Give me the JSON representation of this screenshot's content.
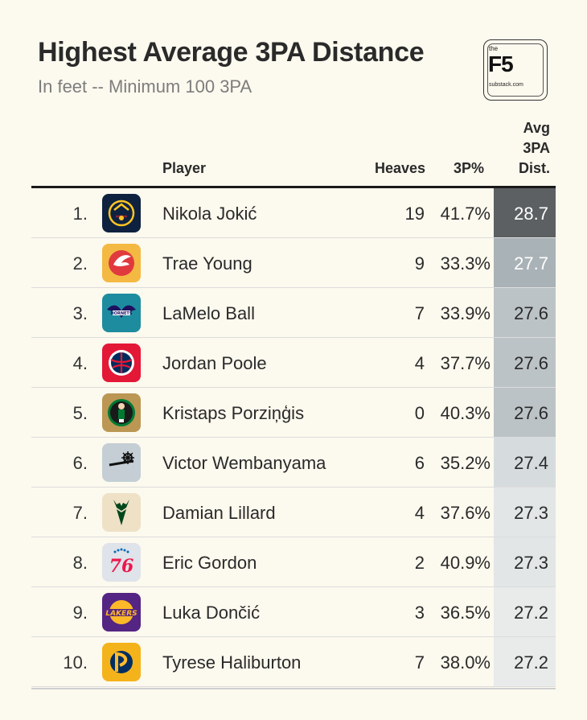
{
  "title": "Highest Average 3PA Distance",
  "subtitle": "In feet -- Minimum 100 3PA",
  "logo": {
    "the": "the",
    "brand": "F5",
    "domain": "substack.com"
  },
  "chart_data": {
    "type": "table",
    "columns": {
      "player": "Player",
      "heaves": "Heaves",
      "pct": "3P%",
      "dist": "Avg\n3PA\nDist."
    },
    "rows": [
      {
        "rank": "1.",
        "team": "Denver Nuggets",
        "player": "Nikola Jokić",
        "heaves": "19",
        "pct": "41.7%",
        "dist": "28.7",
        "dist_value": 28.7,
        "shade": "#5c6062",
        "text": "#ffffff"
      },
      {
        "rank": "2.",
        "team": "Atlanta Hawks",
        "player": "Trae Young",
        "heaves": "9",
        "pct": "33.3%",
        "dist": "27.7",
        "dist_value": 27.7,
        "shade": "#a9b2b6",
        "text": "#ffffff"
      },
      {
        "rank": "3.",
        "team": "Charlotte Hornets",
        "player": "LaMelo Ball",
        "heaves": "7",
        "pct": "33.9%",
        "dist": "27.6",
        "dist_value": 27.6,
        "shade": "#bcc3c6",
        "text": "#2a2a2a"
      },
      {
        "rank": "4.",
        "team": "Washington Wizards",
        "player": "Jordan Poole",
        "heaves": "4",
        "pct": "37.7%",
        "dist": "27.6",
        "dist_value": 27.6,
        "shade": "#bcc3c6",
        "text": "#2a2a2a"
      },
      {
        "rank": "5.",
        "team": "Boston Celtics",
        "player": "Kristaps Porziņģis",
        "heaves": "0",
        "pct": "40.3%",
        "dist": "27.6",
        "dist_value": 27.6,
        "shade": "#bcc3c6",
        "text": "#2a2a2a"
      },
      {
        "rank": "6.",
        "team": "San Antonio Spurs",
        "player": "Victor Wembanyama",
        "heaves": "6",
        "pct": "35.2%",
        "dist": "27.4",
        "dist_value": 27.4,
        "shade": "#d6dcde",
        "text": "#2a2a2a"
      },
      {
        "rank": "7.",
        "team": "Milwaukee Bucks",
        "player": "Damian Lillard",
        "heaves": "4",
        "pct": "37.6%",
        "dist": "27.3",
        "dist_value": 27.3,
        "shade": "#e2e6e7",
        "text": "#2a2a2a"
      },
      {
        "rank": "8.",
        "team": "Philadelphia 76ers",
        "player": "Eric Gordon",
        "heaves": "2",
        "pct": "40.9%",
        "dist": "27.3",
        "dist_value": 27.3,
        "shade": "#e2e6e7",
        "text": "#2a2a2a"
      },
      {
        "rank": "9.",
        "team": "Los Angeles Lakers",
        "player": "Luka Dončić",
        "heaves": "3",
        "pct": "36.5%",
        "dist": "27.2",
        "dist_value": 27.2,
        "shade": "#e8ebea",
        "text": "#2a2a2a"
      },
      {
        "rank": "10.",
        "team": "Indiana Pacers",
        "player": "Tyrese Haliburton",
        "heaves": "7",
        "pct": "38.0%",
        "dist": "27.2",
        "dist_value": 27.2,
        "shade": "#e8ebea",
        "text": "#2a2a2a"
      }
    ]
  }
}
